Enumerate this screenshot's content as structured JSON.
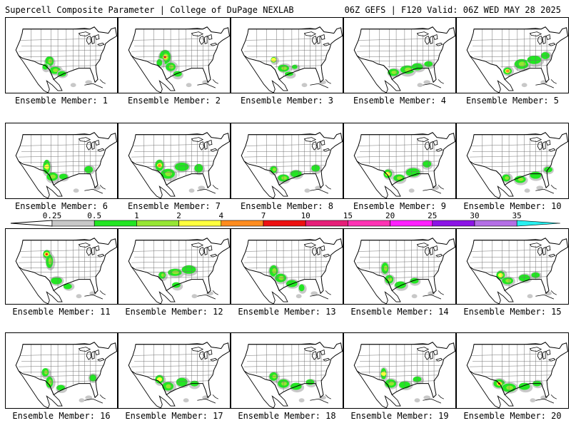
{
  "header": {
    "left": "Supercell Composite Parameter | College of DuPage NEXLAB",
    "right": "06Z GEFS | F120 Valid: 06Z WED MAY 28 2025"
  },
  "colors": {
    "bin_0_25": "#c8c8c8",
    "bin_0_5": "#22e622",
    "bin_1": "#96e632",
    "bin_2": "#ffff3c",
    "bin_4": "#ff8c1e",
    "bin_7": "#ee1111",
    "bin_10": "#e61e78",
    "bin_15": "#ff32b4",
    "bin_20": "#ff1eff",
    "bin_25": "#8c14e6",
    "bin_30": "#b46ee6",
    "bin_35": "#28f0f0"
  },
  "colorbar": {
    "ticks": [
      "0.25",
      "0.5",
      "1",
      "2",
      "4",
      "7",
      "10",
      "15",
      "20",
      "25",
      "30",
      "35"
    ]
  },
  "members": [
    {
      "label": "Ensemble Member: 1",
      "max_level": "1"
    },
    {
      "label": "Ensemble Member: 2",
      "max_level": "7"
    },
    {
      "label": "Ensemble Member: 3",
      "max_level": "2"
    },
    {
      "label": "Ensemble Member: 4",
      "max_level": "1"
    },
    {
      "label": "Ensemble Member: 5",
      "max_level": "4"
    },
    {
      "label": "Ensemble Member: 6",
      "max_level": "2"
    },
    {
      "label": "Ensemble Member: 7",
      "max_level": "4"
    },
    {
      "label": "Ensemble Member: 8",
      "max_level": "1"
    },
    {
      "label": "Ensemble Member: 9",
      "max_level": "2"
    },
    {
      "label": "Ensemble Member: 10",
      "max_level": "1"
    },
    {
      "label": "Ensemble Member: 11",
      "max_level": "10"
    },
    {
      "label": "Ensemble Member: 12",
      "max_level": "1"
    },
    {
      "label": "Ensemble Member: 13",
      "max_level": "1"
    },
    {
      "label": "Ensemble Member: 14",
      "max_level": "1"
    },
    {
      "label": "Ensemble Member: 15",
      "max_level": "2"
    },
    {
      "label": "Ensemble Member: 16",
      "max_level": "1"
    },
    {
      "label": "Ensemble Member: 17",
      "max_level": "2"
    },
    {
      "label": "Ensemble Member: 18",
      "max_level": "1"
    },
    {
      "label": "Ensemble Member: 19",
      "max_level": "2"
    },
    {
      "label": "Ensemble Member: 20",
      "max_level": "10"
    }
  ]
}
